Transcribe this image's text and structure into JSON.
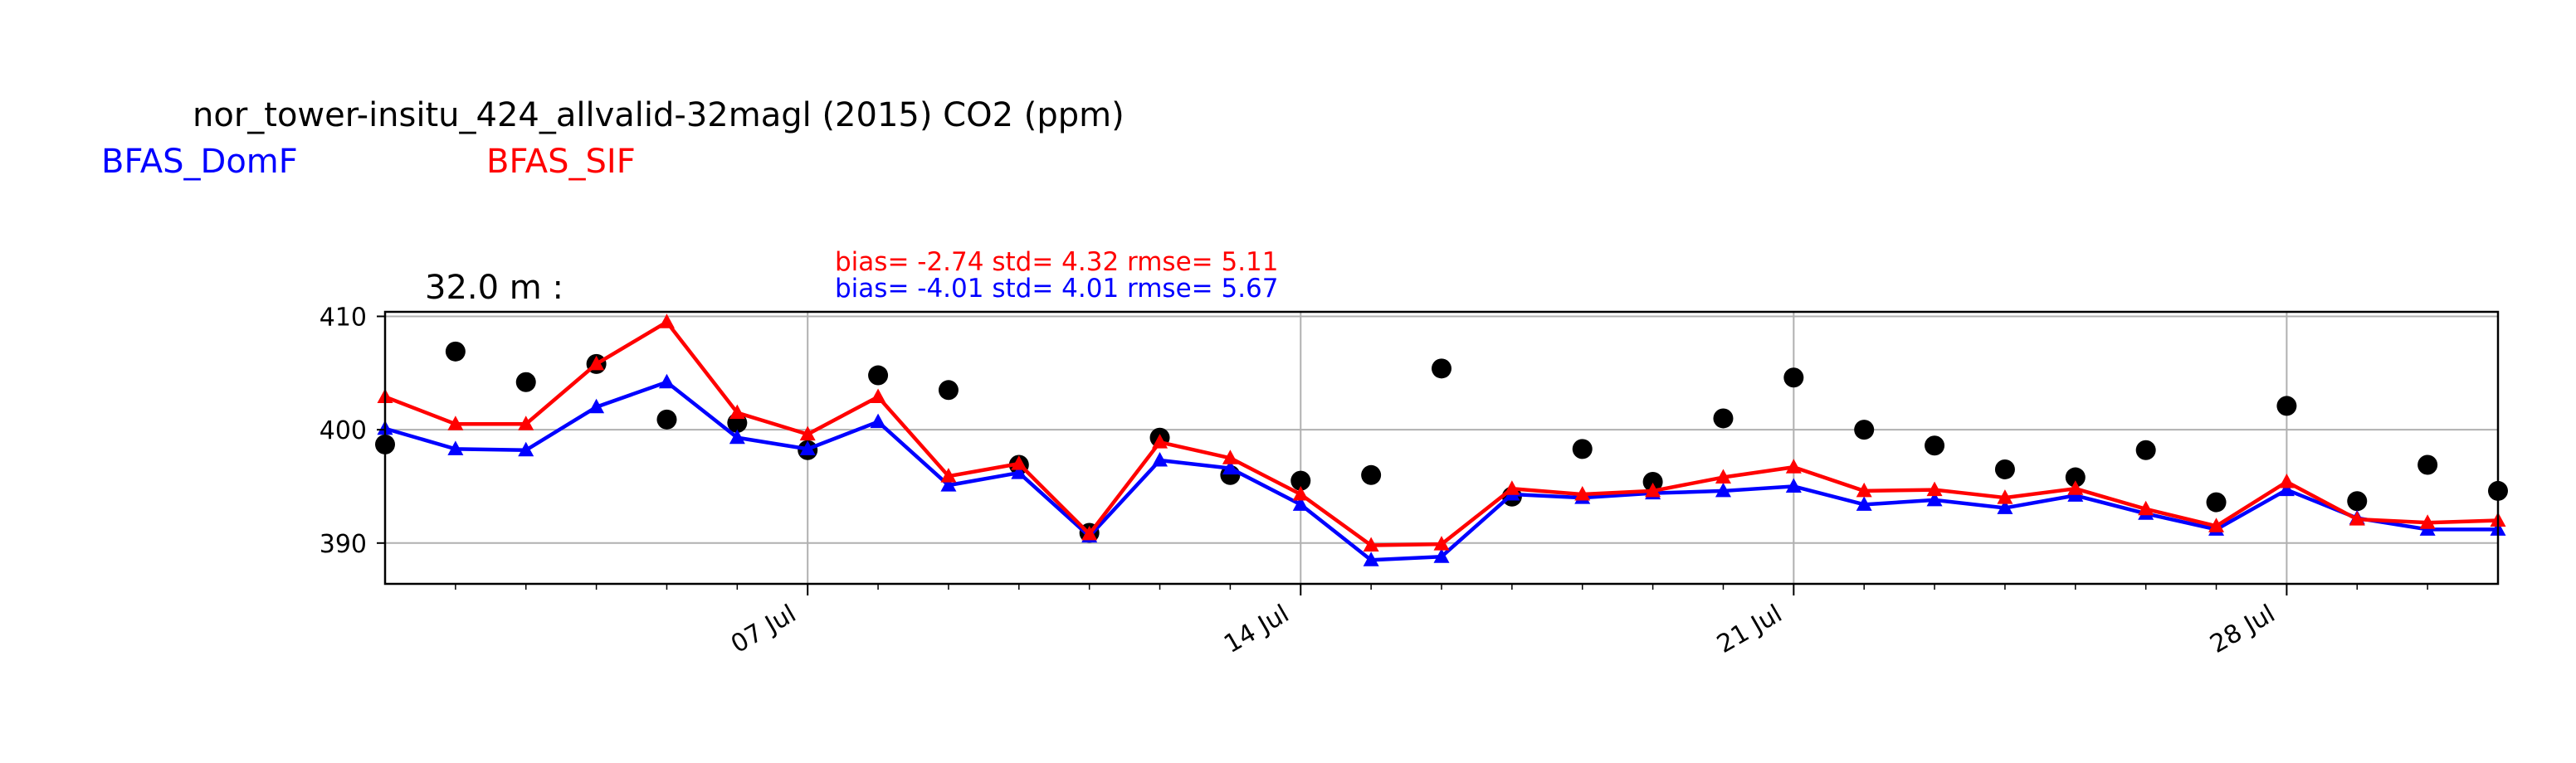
{
  "header": {
    "title": "nor_tower-insitu_424_allvalid-32magl (2015) CO2 (ppm)",
    "legend_domf": "BFAS_DomF",
    "legend_sif": "BFAS_SIF"
  },
  "panel_label": "32.0 m :",
  "stats": {
    "sif": "bias= -2.74 std= 4.32 rmse= 5.11",
    "domf": "bias= -4.01 std= 4.01 rmse= 5.67"
  },
  "colors": {
    "domf": "#0000ff",
    "sif": "#ff0000",
    "obs": "#000000",
    "grid": "#b0b0b0"
  },
  "chart_data": {
    "type": "line",
    "x_unit": "day of July 2015",
    "xlim": [
      1,
      31
    ],
    "ylim": [
      386.4,
      410.4
    ],
    "yticks": [
      390,
      400,
      410
    ],
    "ytick_labels": [
      "390",
      "400",
      "410"
    ],
    "xticks": [
      7,
      14,
      21,
      28
    ],
    "xtick_labels": [
      "07 Jul",
      "14 Jul",
      "21 Jul",
      "28 Jul"
    ],
    "minor_xticks": [
      2,
      3,
      4,
      5,
      6,
      8,
      9,
      10,
      11,
      12,
      13,
      15,
      16,
      17,
      18,
      19,
      20,
      22,
      23,
      24,
      25,
      26,
      27,
      29,
      30
    ],
    "grid": true,
    "x": [
      1,
      2,
      3,
      4,
      5,
      6,
      7,
      8,
      9,
      10,
      11,
      12,
      13,
      14,
      15,
      16,
      17,
      18,
      19,
      20,
      21,
      22,
      23,
      24,
      25,
      26,
      27,
      28,
      29,
      30,
      31
    ],
    "series": [
      {
        "name": "obs",
        "marker": "circle",
        "line": false,
        "values": [
          398.7,
          406.9,
          404.2,
          405.8,
          400.9,
          400.6,
          398.2,
          404.8,
          403.5,
          396.9,
          390.9,
          399.3,
          396.0,
          395.5,
          396.0,
          405.4,
          394.1,
          398.3,
          395.4,
          401.0,
          404.6,
          400.0,
          398.6,
          396.5,
          395.8,
          398.2,
          393.6,
          402.1,
          393.7,
          396.9,
          394.6
        ]
      },
      {
        "name": "BFAS_SIF",
        "marker": "triangle",
        "line": true,
        "values": [
          402.9,
          400.5,
          400.5,
          405.8,
          409.5,
          401.5,
          399.6,
          402.9,
          395.9,
          397.0,
          390.8,
          398.9,
          397.5,
          394.3,
          389.8,
          389.9,
          394.8,
          394.3,
          394.6,
          395.8,
          396.7,
          394.6,
          394.7,
          394.0,
          394.8,
          393.0,
          391.5,
          395.4,
          392.1,
          391.8,
          392.0
        ]
      },
      {
        "name": "BFAS_DomF",
        "marker": "triangle",
        "line": true,
        "values": [
          400.1,
          398.3,
          398.2,
          402.0,
          404.2,
          399.3,
          398.3,
          400.7,
          395.1,
          396.2,
          390.6,
          397.3,
          396.6,
          393.4,
          388.5,
          388.8,
          394.3,
          394.0,
          394.4,
          394.6,
          395.0,
          393.4,
          393.8,
          393.1,
          394.2,
          392.6,
          391.2,
          394.7,
          392.2,
          391.2,
          391.2
        ]
      }
    ]
  }
}
